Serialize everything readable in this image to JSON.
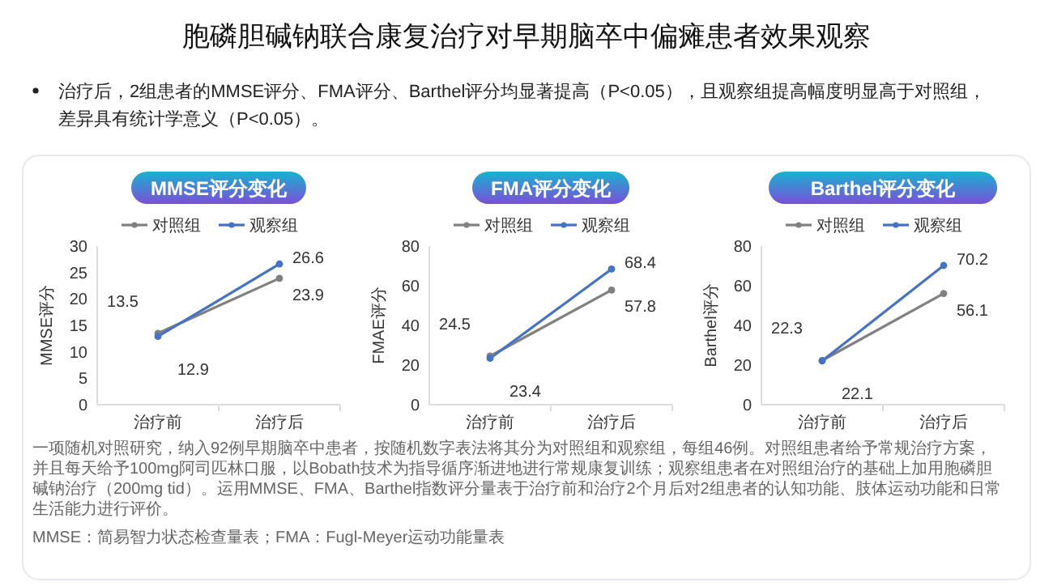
{
  "chart_data": [
    {
      "type": "line",
      "title": "MMSE评分变化",
      "ylabel": "MMSE评分",
      "categories": [
        "治疗前",
        "治疗后"
      ],
      "series": [
        {
          "name": "对照组",
          "color": "#808080",
          "values": [
            13.5,
            23.9
          ]
        },
        {
          "name": "观察组",
          "color": "#4472c4",
          "values": [
            12.9,
            26.6
          ]
        }
      ],
      "ylim": [
        0,
        30
      ],
      "yticks": [
        0,
        5,
        10,
        15,
        20,
        25,
        30
      ],
      "data_labels": true,
      "legend": "top",
      "marker": "circle",
      "line_style": "solid",
      "annotations": [
        "胞磷胆碱钠联合康复治疗对早期脑卒中偏瘫患者效果观察",
        "治疗后，2组患者的MMSE评分、FMA评分、Barthel评分均显著提高（P<0.05），且观察组提高幅度明显高于对照组，差异具有统计学意义（P<0.05）。",
        "一项随机对照研究，纳入92例早期脑卒中患者，按随机数字表法将其分为对照组和观察组，每组46例。对照组患者给予常规治疗方案，并且每天给予100mg阿司匹林口服，以Bobath技术为指导循序渐进地进行常规康复训练；观察组患者在对照组治疗的基础上加用胞磷胆碱钠治疗（200mg tid）。运用MMSE、FMA、Barthel指数评分量表于治疗前和治疗2个月后对2组患者的认知功能、肢体运动功能和日常生活能力进行评价。",
        "MMSE：简易智力状态检查量表；FMA：Fugl-Meyer运动功能量表"
      ]
    },
    {
      "type": "line",
      "title": "FMA评分变化",
      "ylabel": "FMAE评分",
      "categories": [
        "治疗前",
        "治疗后"
      ],
      "series": [
        {
          "name": "对照组",
          "color": "#808080",
          "values": [
            24.5,
            57.8
          ]
        },
        {
          "name": "观察组",
          "color": "#4472c4",
          "values": [
            23.4,
            68.4
          ]
        }
      ],
      "ylim": [
        0,
        80
      ],
      "yticks": [
        0,
        20,
        40,
        60,
        80
      ],
      "data_labels": true,
      "legend": "top",
      "marker": "circle",
      "line_style": "solid"
    },
    {
      "type": "line",
      "title": "Barthel评分变化",
      "ylabel": "Barthel评分",
      "categories": [
        "治疗前",
        "治疗后"
      ],
      "series": [
        {
          "name": "对照组",
          "color": "#808080",
          "values": [
            22.3,
            56.1
          ]
        },
        {
          "name": "观察组",
          "color": "#4472c4",
          "values": [
            22.1,
            70.2
          ]
        }
      ],
      "ylim": [
        0,
        80
      ],
      "yticks": [
        0,
        20,
        40,
        60,
        80
      ],
      "data_labels": true,
      "legend": "top",
      "marker": "circle",
      "line_style": "solid"
    }
  ]
}
